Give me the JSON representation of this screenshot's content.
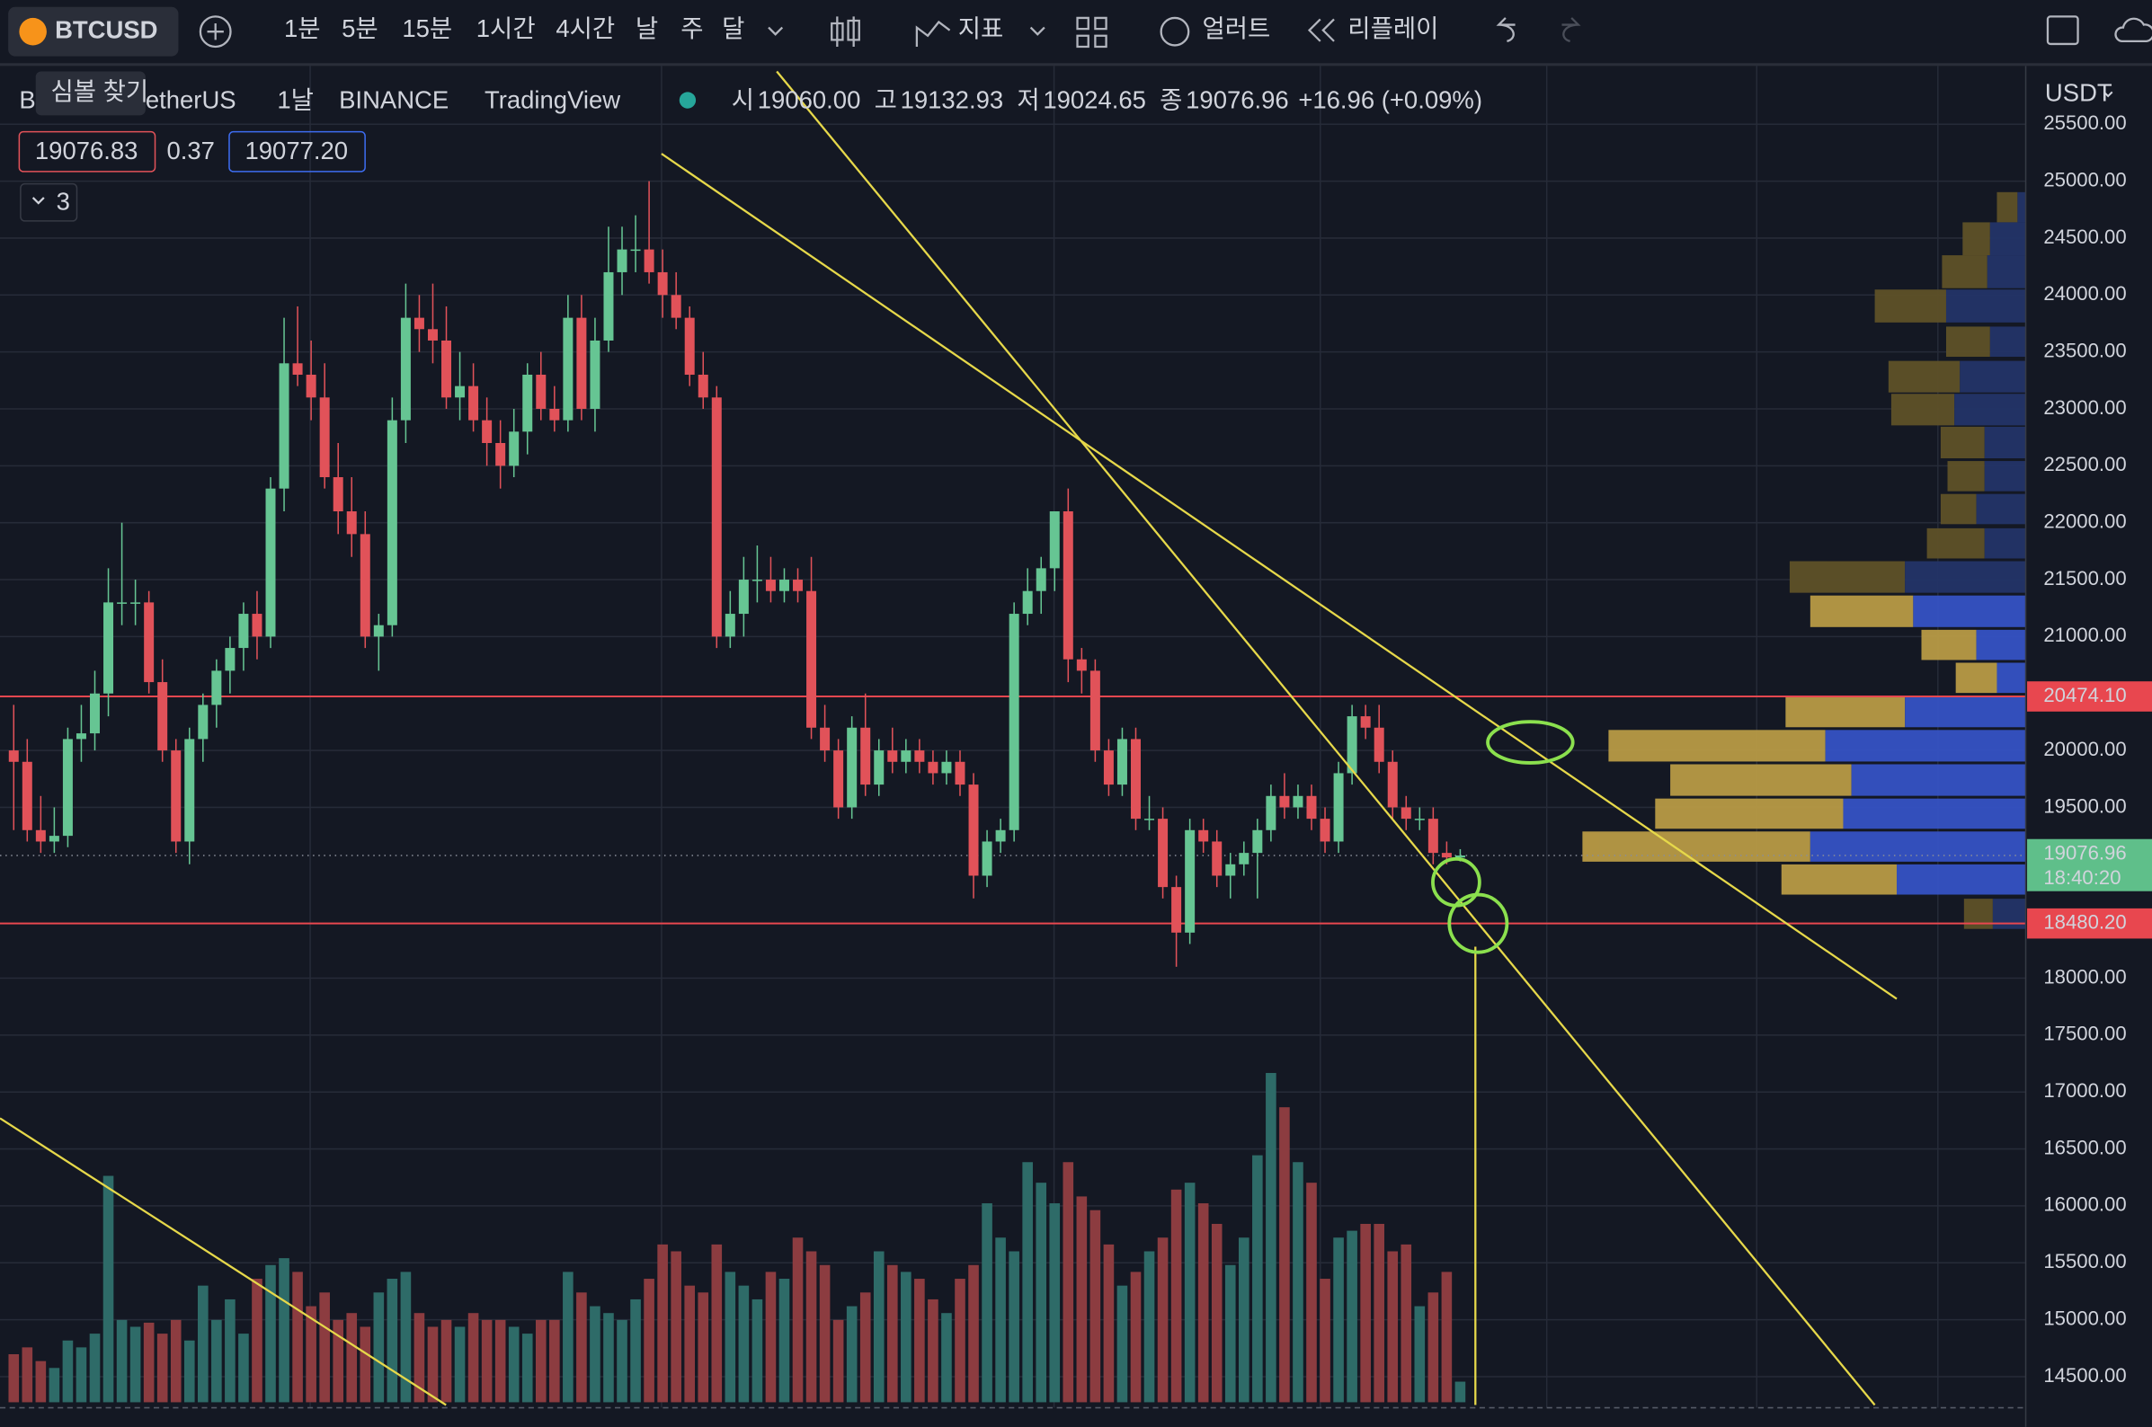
{
  "toolbar": {
    "symbol": "BTCUSD",
    "intervals": [
      "1분",
      "5분",
      "15분",
      "1시간",
      "4시간",
      "날",
      "주",
      "달"
    ],
    "indicators": "지표",
    "alert": "얼러트",
    "replay": "리플레이"
  },
  "tooltip": "심볼 찾기",
  "header": {
    "symbol_start": "B",
    "symbol_end": "etherUS",
    "interval": "1날",
    "exchange": "BINANCE",
    "source": "TradingView",
    "ohlc": [
      {
        "label": "시",
        "value": "19060.00"
      },
      {
        "label": "고",
        "value": "19132.93"
      },
      {
        "label": "저",
        "value": "19024.65"
      },
      {
        "label": "종",
        "value": "19076.96"
      }
    ],
    "change": "+16.96 (+0.09%)",
    "sell": "19076.83",
    "spread": "0.37",
    "buy": "19077.20",
    "collapse": "3"
  },
  "chart_data": {
    "type": "candlestick",
    "currency": "USDT",
    "ylim": [
      14227,
      26012
    ],
    "yticks": [
      {
        "value": 25500,
        "label": "25500.00"
      },
      {
        "value": 25000,
        "label": "25000.00"
      },
      {
        "value": 24500,
        "label": "24500.00"
      },
      {
        "value": 24000,
        "label": "24000.00"
      },
      {
        "value": 23500,
        "label": "23500.00"
      },
      {
        "value": 23000,
        "label": "23000.00"
      },
      {
        "value": 22500,
        "label": "22500.00"
      },
      {
        "value": 22000,
        "label": "22000.00"
      },
      {
        "value": 21500,
        "label": "21500.00"
      },
      {
        "value": 21000,
        "label": "21000.00"
      },
      {
        "value": 20000,
        "label": "20000.00"
      },
      {
        "value": 19500,
        "label": "19500.00"
      },
      {
        "value": 18000,
        "label": "18000.00"
      },
      {
        "value": 17500,
        "label": "17500.00"
      },
      {
        "value": 17000,
        "label": "17000.00"
      },
      {
        "value": 16500,
        "label": "16500.00"
      },
      {
        "value": 16000,
        "label": "16000.00"
      },
      {
        "value": 15500,
        "label": "15500.00"
      },
      {
        "value": 15000,
        "label": "15000.00"
      },
      {
        "value": 14500,
        "label": "14500.00"
      }
    ],
    "levels": [
      {
        "value": 20474.1,
        "label": "20474.10",
        "color": "#e8474f"
      },
      {
        "value": 18480.2,
        "label": "18480.20",
        "color": "#e8474f"
      }
    ],
    "last": {
      "value": 19076.96,
      "label": "19076.96",
      "countdown": "18:40:20",
      "color": "#5fbf8a"
    },
    "up_color": "#66c593",
    "down_color": "#e15259",
    "volume_up_color": "#2e6b68",
    "volume_down_color": "#8c3c40",
    "candles": [
      [
        20000,
        20400,
        19300,
        19900
      ],
      [
        19900,
        20100,
        19200,
        19300
      ],
      [
        19300,
        19600,
        19100,
        19200
      ],
      [
        19200,
        19500,
        19100,
        19250
      ],
      [
        19250,
        20200,
        19150,
        20100
      ],
      [
        20100,
        20400,
        19900,
        20150
      ],
      [
        20150,
        20700,
        20000,
        20500
      ],
      [
        20500,
        21600,
        20300,
        21300
      ],
      [
        21300,
        22000,
        21100,
        21300
      ],
      [
        21300,
        21500,
        21100,
        21300
      ],
      [
        21300,
        21400,
        20500,
        20600
      ],
      [
        20600,
        20800,
        19900,
        20000
      ],
      [
        20000,
        20100,
        19100,
        19200
      ],
      [
        19200,
        20200,
        19000,
        20100
      ],
      [
        20100,
        20500,
        19900,
        20400
      ],
      [
        20400,
        20800,
        20200,
        20700
      ],
      [
        20700,
        21000,
        20500,
        20900
      ],
      [
        20900,
        21300,
        20700,
        21200
      ],
      [
        21200,
        21400,
        20800,
        21000
      ],
      [
        21000,
        22400,
        20900,
        22300
      ],
      [
        22300,
        23800,
        22100,
        23400
      ],
      [
        23400,
        23900,
        23200,
        23300
      ],
      [
        23300,
        23600,
        22900,
        23100
      ],
      [
        23100,
        23400,
        22300,
        22400
      ],
      [
        22400,
        22700,
        21900,
        22100
      ],
      [
        22100,
        22400,
        21700,
        21900
      ],
      [
        21900,
        22100,
        20900,
        21000
      ],
      [
        21000,
        21200,
        20700,
        21100
      ],
      [
        21100,
        23100,
        21000,
        22900
      ],
      [
        22900,
        24100,
        22700,
        23800
      ],
      [
        23800,
        24000,
        23500,
        23700
      ],
      [
        23700,
        24100,
        23400,
        23600
      ],
      [
        23600,
        23900,
        23000,
        23100
      ],
      [
        23100,
        23500,
        22900,
        23200
      ],
      [
        23200,
        23400,
        22800,
        22900
      ],
      [
        22900,
        23100,
        22500,
        22700
      ],
      [
        22700,
        22900,
        22300,
        22500
      ],
      [
        22500,
        23000,
        22400,
        22800
      ],
      [
        22800,
        23400,
        22600,
        23300
      ],
      [
        23300,
        23500,
        22900,
        23000
      ],
      [
        23000,
        23200,
        22800,
        22900
      ],
      [
        22900,
        24000,
        22800,
        23800
      ],
      [
        23800,
        24000,
        22900,
        23000
      ],
      [
        23000,
        23800,
        22800,
        23600
      ],
      [
        23600,
        24600,
        23500,
        24200
      ],
      [
        24200,
        24600,
        24000,
        24400
      ],
      [
        24400,
        24700,
        24200,
        24400
      ],
      [
        24400,
        25000,
        24100,
        24200
      ],
      [
        24200,
        24400,
        23800,
        24000
      ],
      [
        24000,
        24200,
        23700,
        23800
      ],
      [
        23800,
        23900,
        23200,
        23300
      ],
      [
        23300,
        23500,
        23000,
        23100
      ],
      [
        23100,
        23200,
        20900,
        21000
      ],
      [
        21000,
        21400,
        20900,
        21200
      ],
      [
        21200,
        21700,
        21000,
        21500
      ],
      [
        21500,
        21800,
        21300,
        21500
      ],
      [
        21500,
        21700,
        21300,
        21400
      ],
      [
        21400,
        21600,
        21300,
        21500
      ],
      [
        21500,
        21600,
        21300,
        21400
      ],
      [
        21400,
        21700,
        20100,
        20200
      ],
      [
        20200,
        20400,
        19900,
        20000
      ],
      [
        20000,
        20100,
        19400,
        19500
      ],
      [
        19500,
        20300,
        19400,
        20200
      ],
      [
        20200,
        20500,
        19600,
        19700
      ],
      [
        19700,
        20100,
        19600,
        20000
      ],
      [
        20000,
        20200,
        19800,
        19900
      ],
      [
        19900,
        20100,
        19800,
        20000
      ],
      [
        20000,
        20100,
        19800,
        19900
      ],
      [
        19900,
        20000,
        19700,
        19800
      ],
      [
        19800,
        20000,
        19700,
        19900
      ],
      [
        19900,
        20000,
        19600,
        19700
      ],
      [
        19700,
        19800,
        18700,
        18900
      ],
      [
        18900,
        19300,
        18800,
        19200
      ],
      [
        19200,
        19400,
        19100,
        19300
      ],
      [
        19300,
        21300,
        19200,
        21200
      ],
      [
        21200,
        21600,
        21100,
        21400
      ],
      [
        21400,
        21700,
        21200,
        21600
      ],
      [
        21600,
        22100,
        21400,
        22100
      ],
      [
        22100,
        22300,
        20600,
        20800
      ],
      [
        20800,
        20900,
        20500,
        20700
      ],
      [
        20700,
        20800,
        19900,
        20000
      ],
      [
        20000,
        20100,
        19600,
        19700
      ],
      [
        19700,
        20200,
        19600,
        20100
      ],
      [
        20100,
        20200,
        19300,
        19400
      ],
      [
        19400,
        19600,
        19300,
        19400
      ],
      [
        19400,
        19500,
        18700,
        18800
      ],
      [
        18800,
        18900,
        18100,
        18400
      ],
      [
        18400,
        19400,
        18300,
        19300
      ],
      [
        19300,
        19400,
        19100,
        19200
      ],
      [
        19200,
        19300,
        18800,
        18900
      ],
      [
        18900,
        19100,
        18700,
        19000
      ],
      [
        19000,
        19200,
        18900,
        19100
      ],
      [
        19100,
        19400,
        18700,
        19300
      ],
      [
        19300,
        19700,
        19200,
        19600
      ],
      [
        19600,
        19800,
        19400,
        19500
      ],
      [
        19500,
        19700,
        19400,
        19600
      ],
      [
        19600,
        19700,
        19300,
        19400
      ],
      [
        19400,
        19500,
        19100,
        19200
      ],
      [
        19200,
        19900,
        19100,
        19800
      ],
      [
        19800,
        20400,
        19700,
        20300
      ],
      [
        20300,
        20400,
        20100,
        20200
      ],
      [
        20200,
        20400,
        19800,
        19900
      ],
      [
        19900,
        20000,
        19400,
        19500
      ],
      [
        19500,
        19600,
        19300,
        19400
      ],
      [
        19400,
        19500,
        19300,
        19400
      ],
      [
        19400,
        19500,
        19000,
        19100
      ],
      [
        19100,
        19200,
        19000,
        19060
      ],
      [
        19060,
        19133,
        19025,
        19077
      ]
    ],
    "volume": [
      35,
      40,
      30,
      25,
      45,
      40,
      50,
      165,
      60,
      55,
      58,
      50,
      60,
      45,
      85,
      60,
      75,
      50,
      90,
      100,
      105,
      95,
      70,
      80,
      60,
      65,
      55,
      80,
      90,
      95,
      65,
      55,
      60,
      55,
      65,
      60,
      60,
      55,
      50,
      60,
      60,
      95,
      80,
      70,
      65,
      60,
      75,
      90,
      115,
      110,
      85,
      80,
      115,
      95,
      85,
      75,
      95,
      90,
      120,
      110,
      100,
      60,
      70,
      80,
      110,
      100,
      95,
      90,
      75,
      65,
      90,
      100,
      145,
      120,
      110,
      175,
      160,
      145,
      175,
      150,
      140,
      115,
      85,
      95,
      110,
      120,
      155,
      160,
      145,
      130,
      100,
      120,
      180,
      240,
      215,
      175,
      160,
      90,
      120,
      125,
      130,
      130,
      110,
      115,
      70,
      80,
      95,
      15
    ]
  }
}
